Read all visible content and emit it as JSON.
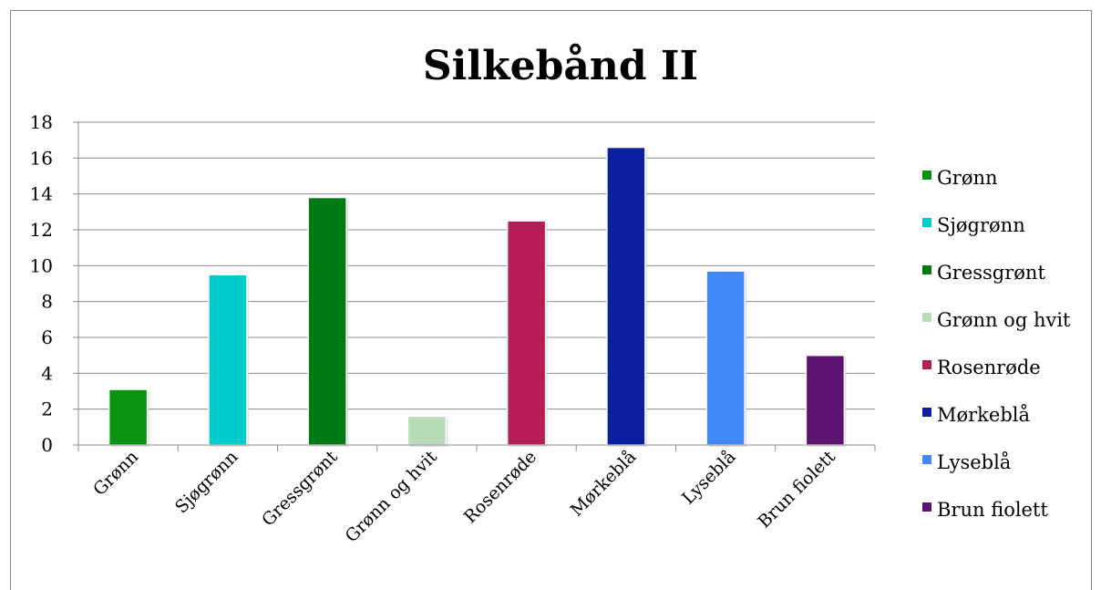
{
  "chart_data": {
    "type": "bar",
    "title": "Silkebånd II",
    "xlabel": "",
    "ylabel": "",
    "ylim": [
      0,
      18
    ],
    "yticks": [
      0,
      2,
      4,
      6,
      8,
      10,
      12,
      14,
      16,
      18
    ],
    "grid": true,
    "legend_position": "right",
    "categories": [
      "Grønn",
      "Sjøgrønn",
      "Gressgrønt",
      "Grønn og hvit",
      "Rosenrøde",
      "Mørkeblå",
      "Lyseblå",
      "Brun fiolett"
    ],
    "values": [
      3.1,
      9.5,
      13.8,
      1.6,
      12.5,
      16.6,
      9.7,
      5.0
    ],
    "colors": [
      "#0a9412",
      "#00cccc",
      "#007a12",
      "#b7dcb7",
      "#b61d57",
      "#0a20a0",
      "#4187f6",
      "#5c1470"
    ],
    "legend": [
      "Grønn",
      "Sjøgrønn",
      "Gressgrønt",
      "Grønn og hvit",
      "Rosenrøde",
      "Mørkeblå",
      "Lyseblå",
      "Brun fiolett"
    ]
  }
}
